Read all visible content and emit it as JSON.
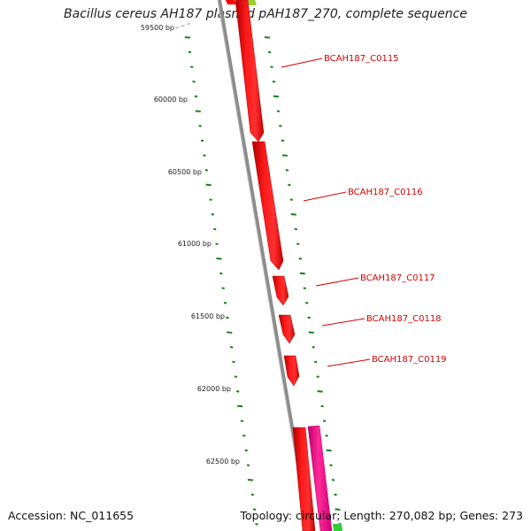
{
  "title": "Bacillus cereus AH187 plasmid pAH187_270, complete sequence",
  "footer": {
    "accession": "Accession: NC_011655",
    "summary": "Topology: circular; Length: 270,082 bp; Genes: 273"
  },
  "colors": {
    "gene_forward": "#ff0000",
    "gene_other": "#ff1493",
    "gene_top": "#9acd32",
    "backbone": "#8c8c8c",
    "gc_ticks": "#1a7f1a",
    "label": "#d40000"
  },
  "ruler": {
    "ticks": [
      {
        "label": "59500 bp"
      },
      {
        "label": "60000 bp"
      },
      {
        "label": "60500 bp"
      },
      {
        "label": "61000 bp"
      },
      {
        "label": "61500 bp"
      },
      {
        "label": "62000 bp"
      },
      {
        "label": "62500 bp"
      }
    ]
  },
  "genes": [
    {
      "label": "BCAH187_C0115"
    },
    {
      "label": "BCAH187_C0116"
    },
    {
      "label": "BCAH187_C0117"
    },
    {
      "label": "BCAH187_C0118"
    },
    {
      "label": "BCAH187_C0119"
    }
  ]
}
